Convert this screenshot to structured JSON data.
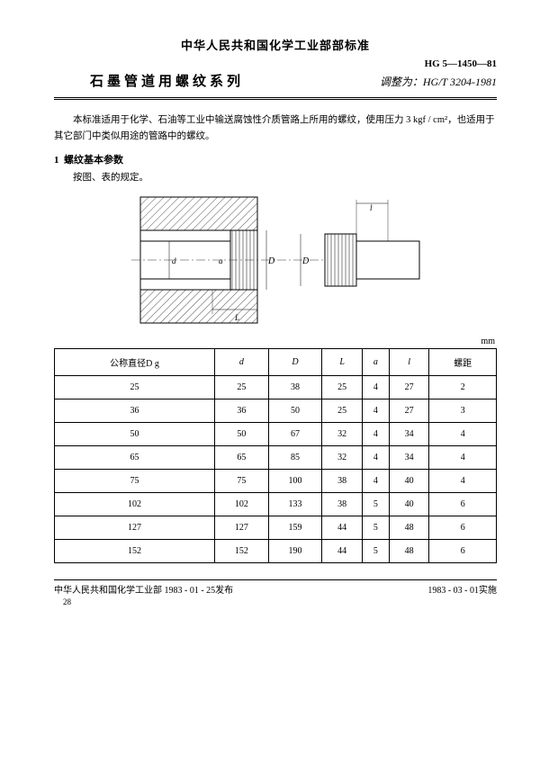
{
  "header": {
    "organization": "中华人民共和国化学工业部部标准",
    "standard_code": "HG 5—1450—81",
    "title": "石墨管道用螺纹系列",
    "handwritten_note": "调整为：HG/T 3204-1981"
  },
  "scope": {
    "paragraph1": "本标准适用于化学、石油等工业中输送腐蚀性介质管路上所用的螺纹，使用压力 3 kgf / cm²，也适用于其它部门中类似用途的管路中的螺纹。"
  },
  "section1": {
    "number": "1",
    "title": "螺纹基本参数",
    "subtitle": "按图、表的规定。"
  },
  "diagram": {
    "labels": [
      "d",
      "a",
      "D",
      "D",
      "l",
      "L"
    ],
    "hatch_color": "#555555",
    "line_color": "#000000",
    "centerline_color": "#333333"
  },
  "table": {
    "unit": "mm",
    "columns": [
      "公称直径D g",
      "d",
      "D",
      "L",
      "a",
      "l",
      "螺距"
    ],
    "rows": [
      [
        "25",
        "25",
        "38",
        "25",
        "4",
        "27",
        "2"
      ],
      [
        "36",
        "36",
        "50",
        "25",
        "4",
        "27",
        "3"
      ],
      [
        "50",
        "50",
        "67",
        "32",
        "4",
        "34",
        "4"
      ],
      [
        "65",
        "65",
        "85",
        "32",
        "4",
        "34",
        "4"
      ],
      [
        "75",
        "75",
        "100",
        "38",
        "4",
        "40",
        "4"
      ],
      [
        "102",
        "102",
        "133",
        "38",
        "5",
        "40",
        "6"
      ],
      [
        "127",
        "127",
        "159",
        "44",
        "5",
        "48",
        "6"
      ],
      [
        "152",
        "152",
        "190",
        "44",
        "5",
        "48",
        "6"
      ]
    ]
  },
  "footer": {
    "issued": "中华人民共和国化学工业部 1983 - 01 - 25发布",
    "effective": "1983 - 03 - 01实施",
    "page_number": "28"
  }
}
